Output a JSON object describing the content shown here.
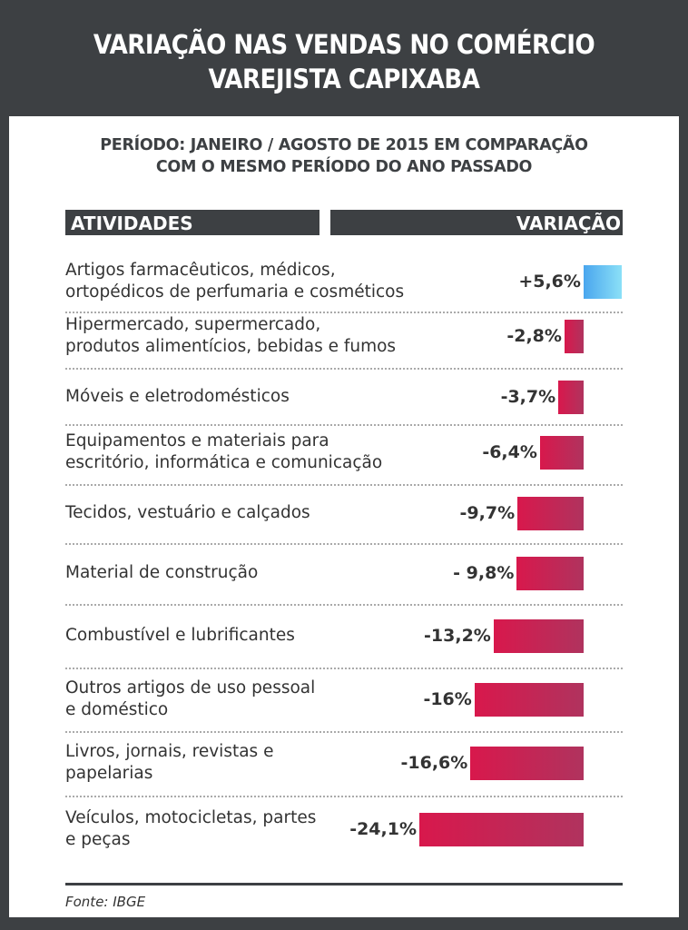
{
  "chart_data": {
    "type": "bar",
    "title": "VARIAÇÃO NAS VENDAS NO COMÉRCIO\nVAREJISTA CAPIXABA",
    "subtitle": "PERÍODO: JANEIRO / AGOSTO DE 2015 EM COMPARAÇÃO\nCOM O MESMO PERÍODO DO ANO PASSADO",
    "column_headers": [
      "ATIVIDADES",
      "VARIAÇÃO"
    ],
    "categories": [
      "Artigos farmacêuticos, médicos,\nortopédicos de perfumaria e cosméticos",
      "Hipermercado, supermercado,\nprodutos alimentícios, bebidas e fumos",
      "Móveis e eletrodomésticos",
      "Equipamentos e materiais para\nescritório, informática e comunicação",
      "Tecidos, vestuário e calçados",
      "Material de construção",
      "Combustível e lubrificantes",
      "Outros artigos de uso pessoal\ne doméstico",
      "Livros, jornais, revistas e\npapelarias",
      "Veículos, motocicletas, partes\ne peças"
    ],
    "values": [
      5.6,
      -2.8,
      -3.7,
      -6.4,
      -9.7,
      -9.8,
      -13.2,
      -16,
      -16.6,
      -24.1
    ],
    "value_labels": [
      "+5,6%",
      "-2,8%",
      "-3,7%",
      "-6,4%",
      "-9,7%",
      "- 9,8%",
      "-13,2%",
      "-16%",
      "-16,6%",
      "-24,1%"
    ],
    "colors": {
      "positive": "#4aa6ee",
      "negative": "#d8184c"
    },
    "source": "Fonte: IBGE"
  }
}
